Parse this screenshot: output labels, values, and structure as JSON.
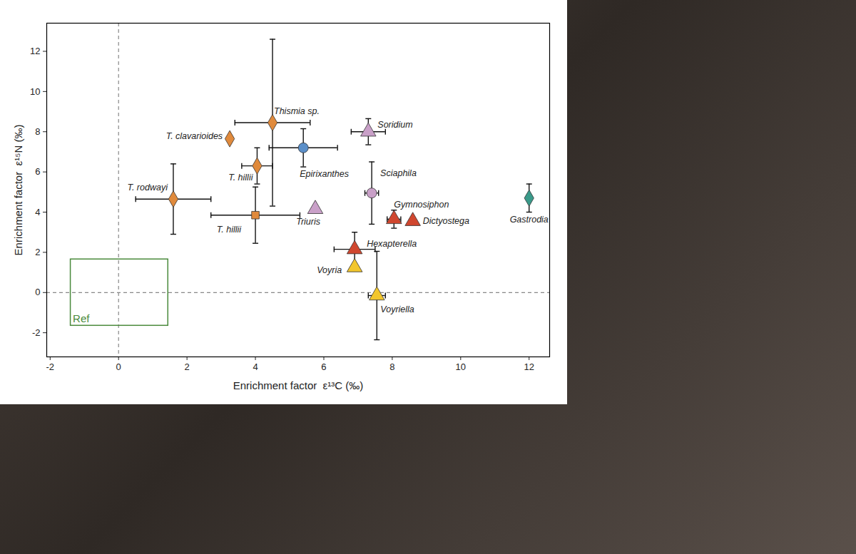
{
  "chart_data": {
    "type": "scatter",
    "x_label": "Enrichment factor  ε¹³C (‰)",
    "y_label": "Enrichment factor  ε¹⁵N (‰)",
    "xlim": [
      -2.1,
      12.6
    ],
    "ylim": [
      -3.2,
      13.4
    ],
    "xticks": [
      -2,
      0,
      2,
      4,
      6,
      8,
      10,
      12
    ],
    "yticks": [
      -2,
      0,
      2,
      4,
      6,
      8,
      10,
      12
    ],
    "grid": false,
    "reference_lines": {
      "x": 0,
      "y": 0
    },
    "reference_box": {
      "label": "Ref",
      "xlim": [
        -1.4,
        1.45
      ],
      "ylim": [
        -1.65,
        1.65
      ],
      "color": "#4a8a3c"
    },
    "points": [
      {
        "label": "T. rodwayi",
        "x": 1.6,
        "y": 4.65,
        "x_err": 1.1,
        "y_err": 1.75,
        "color": "#e08a3c",
        "marker": "diamond"
      },
      {
        "label": "T. clavarioides",
        "x": 3.25,
        "y": 7.65,
        "x_err": null,
        "y_err": null,
        "color": "#e08a3c",
        "marker": "diamond"
      },
      {
        "label": "Thismia sp.",
        "x": 4.5,
        "y": 8.45,
        "x_err": 1.1,
        "y_err": 4.15,
        "color": "#e08a3c",
        "marker": "diamond"
      },
      {
        "label": "T. hillii",
        "x": 4.05,
        "y": 6.3,
        "x_err": 0.45,
        "y_err": 0.9,
        "color": "#e08a3c",
        "marker": "diamond"
      },
      {
        "label": "T. hillii",
        "x": 4.0,
        "y": 3.85,
        "x_err": 1.3,
        "y_err": 1.4,
        "color": "#e08a3c",
        "marker": "square"
      },
      {
        "label": "Epirixanthes",
        "x": 5.4,
        "y": 7.2,
        "x_err": 1.0,
        "y_err": 0.95,
        "color": "#5b8fc9",
        "marker": "circle"
      },
      {
        "label": "Soridium",
        "x": 7.3,
        "y": 8.0,
        "x_err": 0.5,
        "y_err": 0.65,
        "color": "#c9a0c8",
        "marker": "triangle"
      },
      {
        "label": "Sciaphila",
        "x": 7.4,
        "y": 4.95,
        "x_err": 0.2,
        "y_err": 1.55,
        "color": "#c9a0c8",
        "marker": "circle"
      },
      {
        "label": "Triuris",
        "x": 5.75,
        "y": 4.15,
        "x_err": null,
        "y_err": null,
        "color": "#c9a0c8",
        "marker": "triangle"
      },
      {
        "label": "Gymnosiphon",
        "x": 8.05,
        "y": 3.65,
        "x_err": 0.2,
        "y_err": 0.45,
        "color": "#d0472f",
        "marker": "triangle"
      },
      {
        "label": "Dictyostega",
        "x": 8.6,
        "y": 3.55,
        "x_err": null,
        "y_err": null,
        "color": "#d0472f",
        "marker": "triangle"
      },
      {
        "label": "Hexapterella",
        "x": 6.9,
        "y": 2.15,
        "x_err": 0.6,
        "y_err": 0.85,
        "color": "#d0472f",
        "marker": "triangle"
      },
      {
        "label": "Voyria",
        "x": 6.9,
        "y": 1.25,
        "x_err": null,
        "y_err": null,
        "color": "#f2c62c",
        "marker": "triangle"
      },
      {
        "label": "Voyriella",
        "x": 7.55,
        "y": -0.15,
        "x_err": 0.25,
        "y_err": 2.2,
        "color": "#f2c62c",
        "marker": "triangle"
      },
      {
        "label": "Gastrodia",
        "x": 12.0,
        "y": 4.7,
        "x_err": null,
        "y_err": 0.7,
        "color": "#3a9a8a",
        "marker": "diamond"
      }
    ]
  }
}
